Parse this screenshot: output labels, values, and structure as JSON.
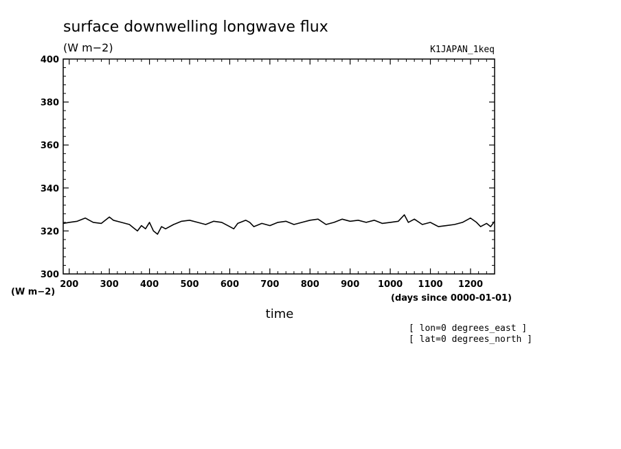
{
  "chart_data": {
    "type": "line",
    "title": "surface downwelling longwave flux",
    "units": "(W m−2)",
    "dataset_label": "K1JAPAN_1keq",
    "xlabel": "time",
    "x_units": "(days since 0000-01-01)",
    "y_units_axis": "(W m−2)",
    "xlim": [
      185,
      1260
    ],
    "ylim": [
      300,
      400
    ],
    "x_ticks": [
      200,
      300,
      400,
      500,
      600,
      700,
      800,
      900,
      1000,
      1100,
      1200
    ],
    "y_ticks": [
      300,
      320,
      340,
      360,
      380,
      400
    ],
    "grid": false,
    "annotations": [
      "[ lon=0 degrees_east ]",
      "[ lat=0 degrees_north ]"
    ],
    "series": [
      {
        "x": [
          185,
          200,
          220,
          240,
          250,
          260,
          280,
          300,
          310,
          330,
          350,
          360,
          370,
          380,
          390,
          400,
          410,
          420,
          430,
          440,
          460,
          480,
          500,
          520,
          540,
          560,
          580,
          600,
          610,
          620,
          640,
          650,
          660,
          680,
          700,
          720,
          740,
          760,
          780,
          800,
          820,
          840,
          860,
          880,
          900,
          920,
          940,
          960,
          980,
          1000,
          1020,
          1035,
          1045,
          1060,
          1080,
          1100,
          1120,
          1140,
          1160,
          1180,
          1200,
          1215,
          1225,
          1240,
          1250,
          1260
        ],
        "y": [
          323.5,
          324.0,
          324.5,
          326.0,
          325.0,
          324.0,
          323.5,
          326.5,
          325.0,
          324.0,
          323.0,
          321.5,
          320.0,
          322.5,
          321.0,
          324.0,
          320.0,
          318.5,
          322.0,
          321.0,
          323.0,
          324.5,
          325.0,
          324.0,
          323.0,
          324.5,
          324.0,
          322.0,
          321.0,
          323.5,
          325.0,
          324.0,
          322.0,
          323.5,
          322.5,
          324.0,
          324.5,
          323.0,
          324.0,
          325.0,
          325.5,
          323.0,
          324.0,
          325.5,
          324.5,
          325.0,
          324.0,
          325.0,
          323.5,
          324.0,
          324.5,
          327.5,
          324.0,
          325.5,
          323.0,
          324.0,
          322.0,
          322.5,
          323.0,
          324.0,
          326.0,
          324.0,
          322.0,
          323.5,
          322.0,
          324.5
        ]
      }
    ]
  }
}
